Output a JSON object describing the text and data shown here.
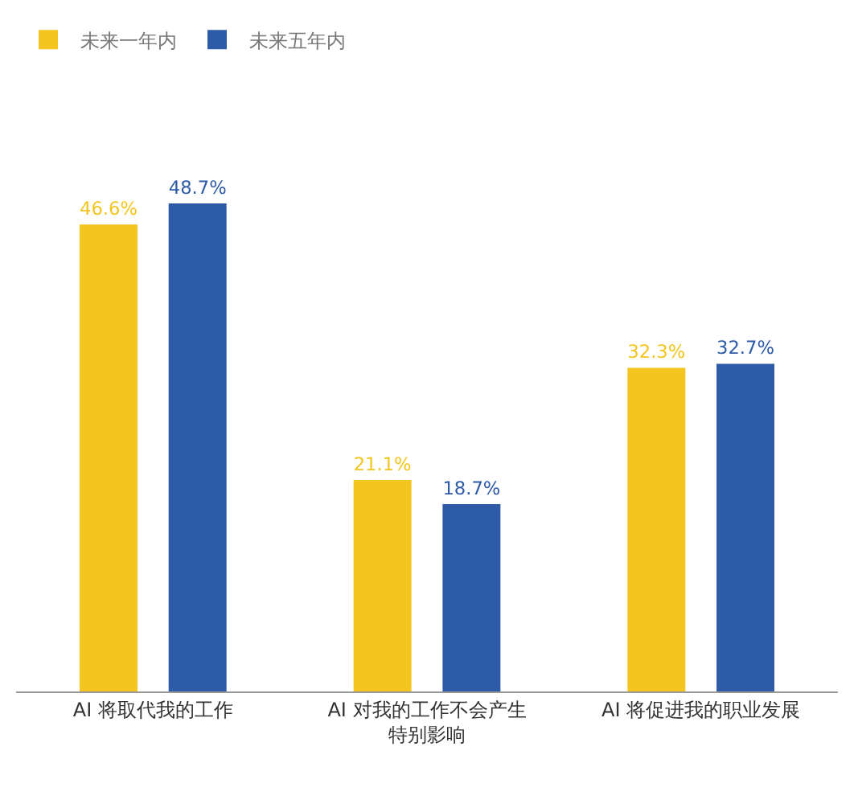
{
  "chart_data": {
    "type": "bar",
    "categories": [
      "AI 将取代我的工作",
      "AI 对我的工作不会产生特别影响",
      "AI 将促进我的职业发展"
    ],
    "series": [
      {
        "name": "未来一年内",
        "color": "#f4c51f",
        "values": [
          46.6,
          21.1,
          32.3
        ],
        "value_labels": [
          "46.6%",
          "21.1%",
          "32.3%"
        ]
      },
      {
        "name": "未来五年内",
        "color": "#2d5ba8",
        "values": [
          48.7,
          18.7,
          32.7
        ],
        "value_labels": [
          "48.7%",
          "18.7%",
          "32.7%"
        ]
      }
    ],
    "legend": "top left"
  }
}
